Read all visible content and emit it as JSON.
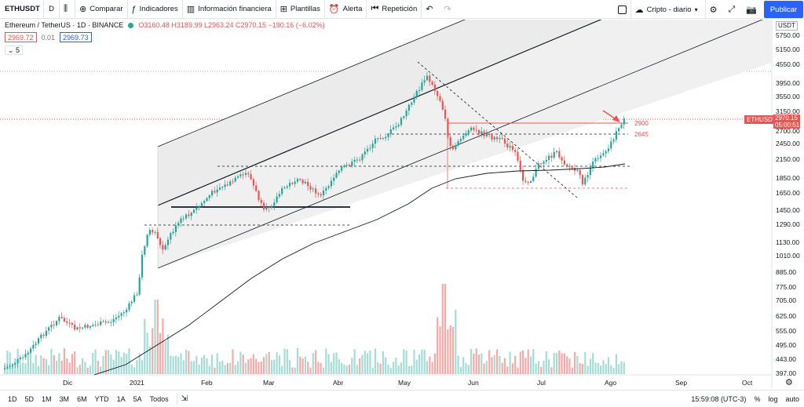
{
  "toolbar": {
    "symbol": "ETHUSDT",
    "interval": "D",
    "compare_label": "Comparar",
    "indicators_label": "Indicadores",
    "financials_label": "Información financiera",
    "templates_label": "Plantillas",
    "alert_label": "Alerta",
    "replay_label": "Repetición",
    "layout_label": "Cripto - diario",
    "publish_label": "Publicar"
  },
  "legend": {
    "title": "Ethereum / TetherUS · 1D · BINANCE",
    "ohlc": "O3160.48 H3189.99 L2963.24 C2970.15 −190.16 (−6.02%)",
    "bid": "2969.72",
    "spread": "0.01",
    "ask": "2969.73",
    "collapsed_count": "5"
  },
  "price_axis": {
    "currency": "USDT",
    "labels": [
      "5750.00",
      "5150.00",
      "4550.00",
      "3950.00",
      "3550.00",
      "3150.00",
      "2700.00",
      "2450.00",
      "2150.00",
      "1850.00",
      "1650.00",
      "1450.00",
      "1290.00",
      "1130.00",
      "1010.00",
      "885.00",
      "775.00",
      "705.00",
      "625.00",
      "555.00",
      "495.00",
      "443.00",
      "397.00"
    ],
    "symbol_tag": "ETHUSDT",
    "last_price": "2970.15",
    "countdown": "05:00:51"
  },
  "levels": [
    "2900",
    "2645"
  ],
  "time_axis": {
    "labels": [
      "Dic",
      "2021",
      "Feb",
      "Mar",
      "Abr",
      "May",
      "Jun",
      "Jul",
      "Ago",
      "Sep",
      "Oct"
    ]
  },
  "bottom": {
    "ranges": [
      "1D",
      "5D",
      "1M",
      "3M",
      "6M",
      "YTD",
      "1A",
      "5A",
      "Todos"
    ],
    "clock": "15:59:08 (UTC-3)",
    "percent": "%",
    "log": "log",
    "auto": "auto"
  },
  "chart_data": {
    "type": "candlestick",
    "title": "Ethereum / TetherUS · 1D · BINANCE",
    "last_close": 2970.15,
    "horizontal_levels": [
      2900,
      2645
    ],
    "colors": {
      "up": "#26a69a",
      "down": "#ef5350",
      "channel": "#131722",
      "channel_fill": "#f0f0f0",
      "level": "#ef5350",
      "dashed": "#131722"
    }
  }
}
